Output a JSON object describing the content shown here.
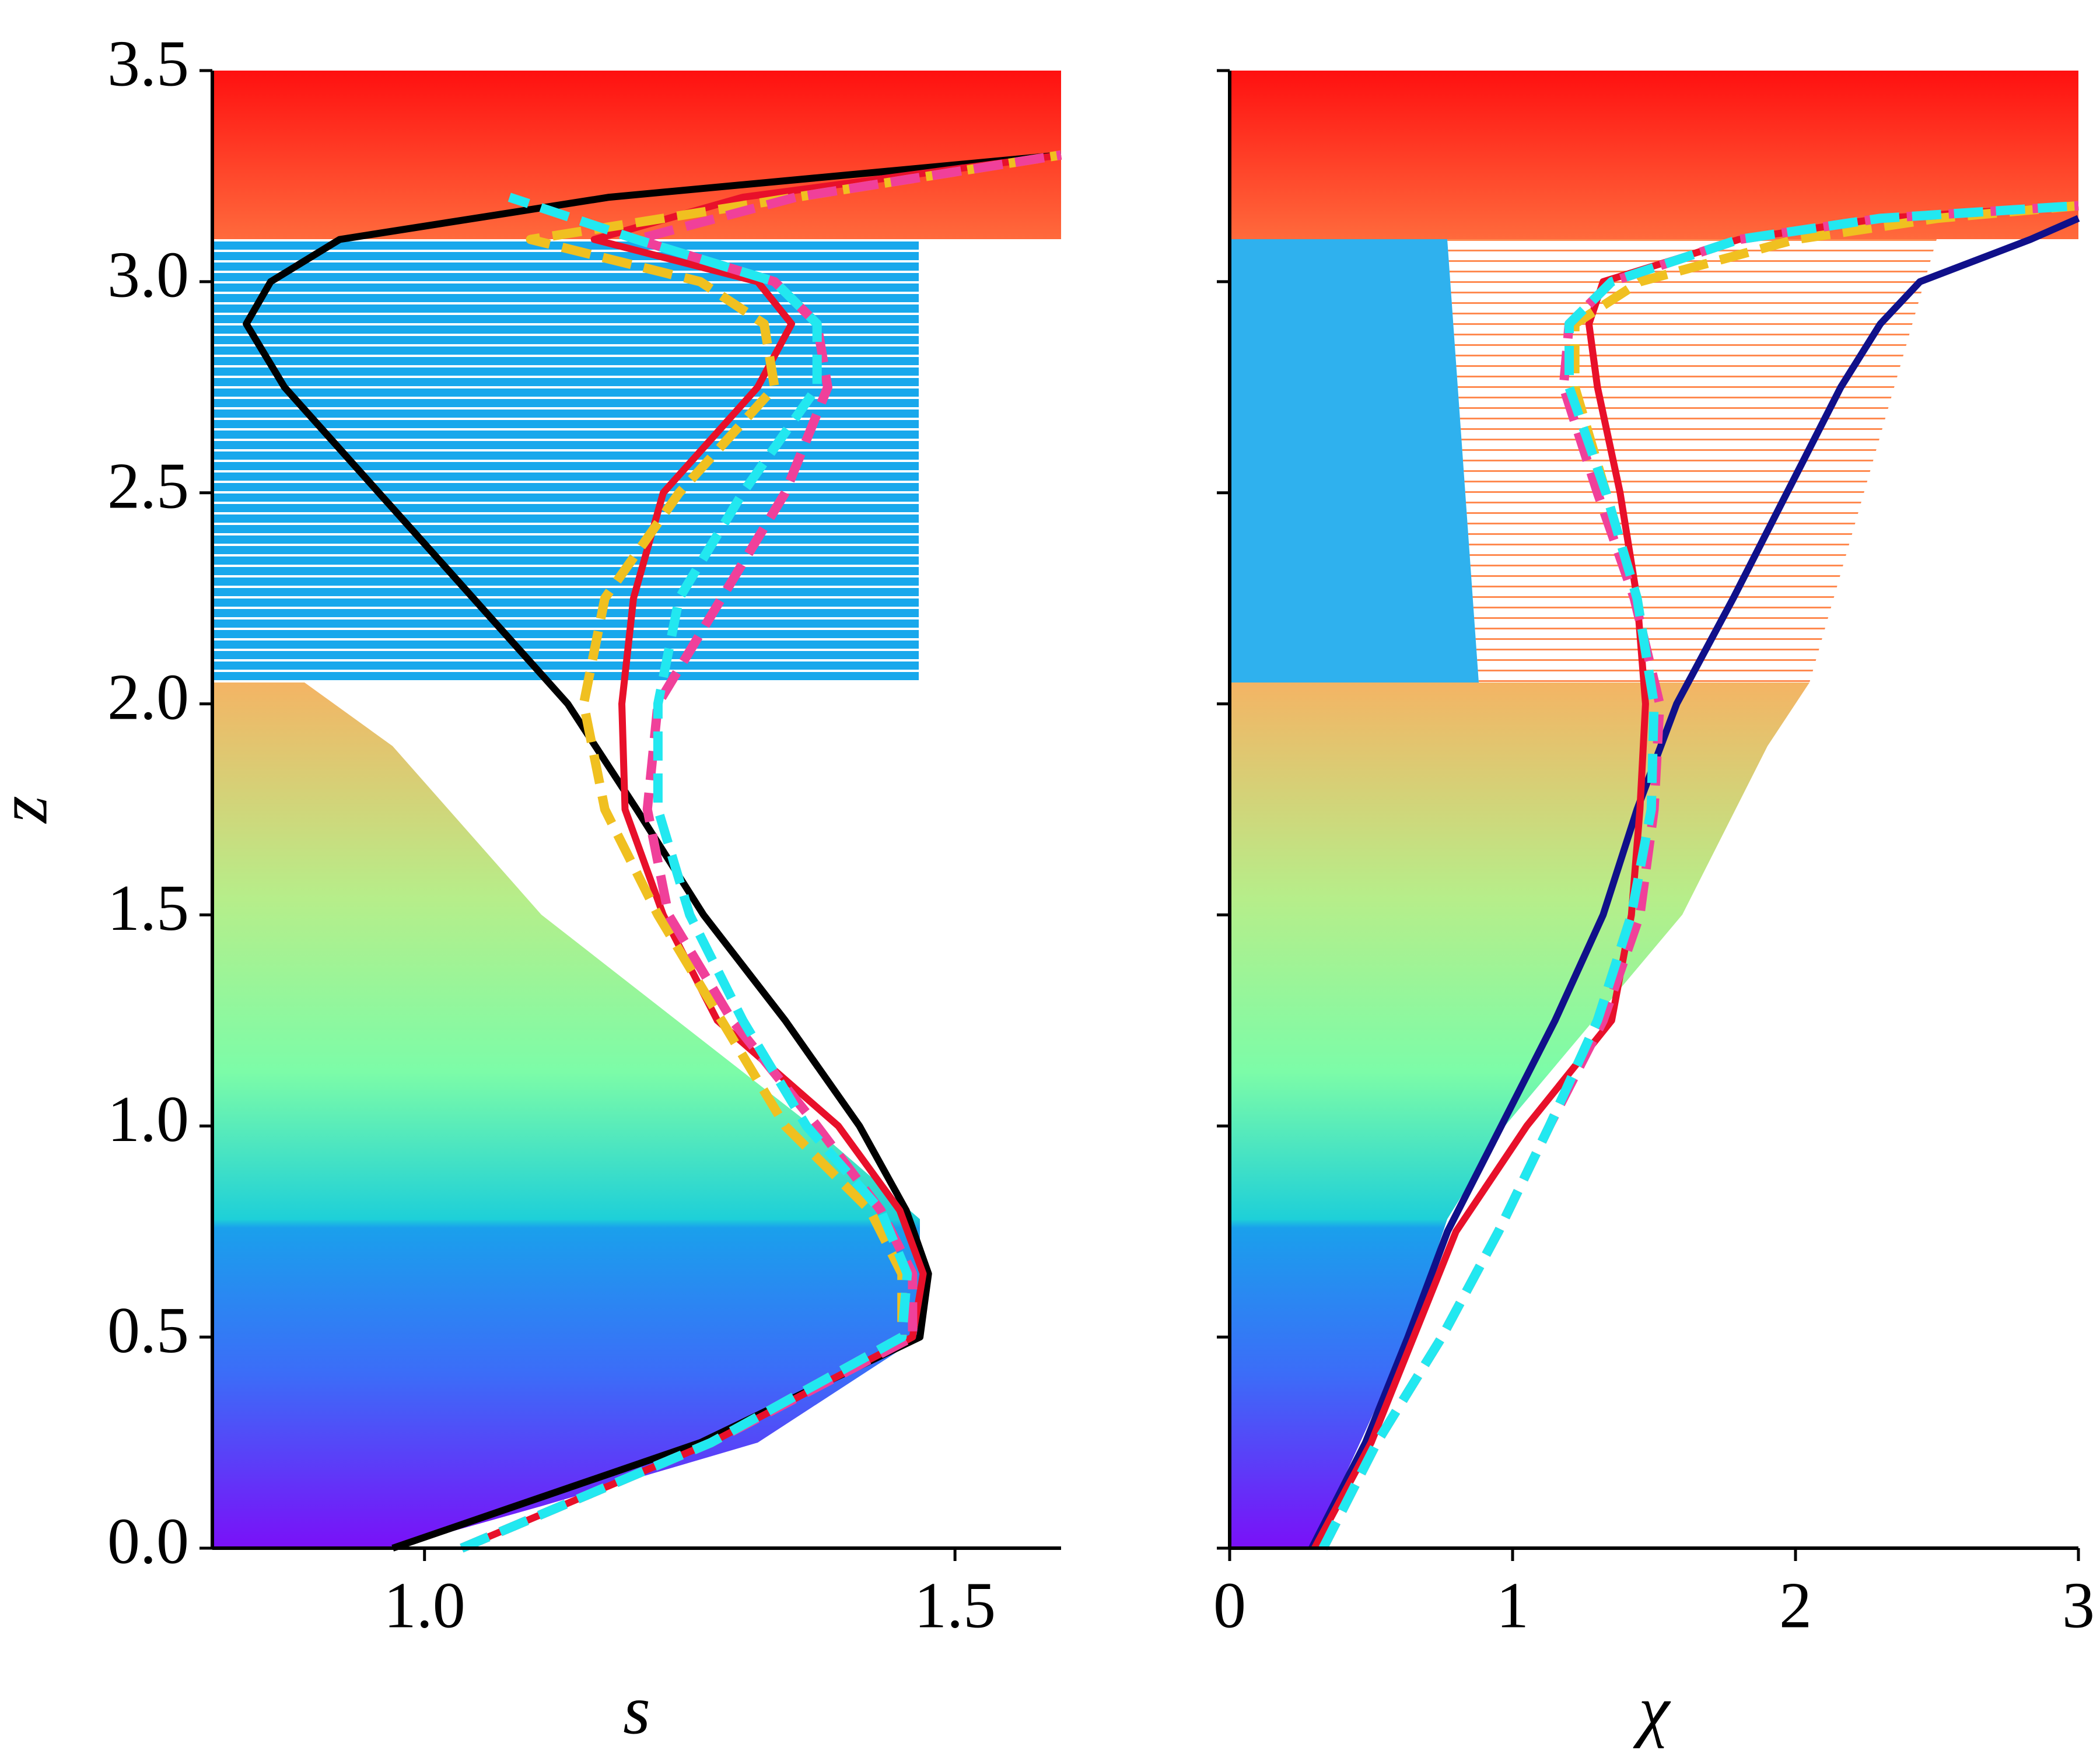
{
  "chart_data": [
    {
      "type": "line",
      "xlabel": "s",
      "ylabel": "z",
      "xlim": [
        0.8,
        1.6
      ],
      "xticks": [
        {
          "value": 1.0,
          "label": "1.0"
        },
        {
          "value": 1.5,
          "label": "1.5"
        }
      ],
      "ylim": [
        0,
        3.5
      ],
      "yticks": [
        {
          "value": 0,
          "label": "0.0"
        },
        {
          "value": 0.5,
          "label": "0.5"
        },
        {
          "value": 1,
          "label": "1.0"
        },
        {
          "value": 1.5,
          "label": "1.5"
        },
        {
          "value": 2,
          "label": "2.0"
        },
        {
          "value": 2.5,
          "label": "2.5"
        },
        {
          "value": 3,
          "label": "3.0"
        },
        {
          "value": 3.5,
          "label": "3.5"
        }
      ],
      "ytick_labels": true,
      "y": [
        0,
        0.25,
        0.5,
        0.65,
        0.8,
        1.0,
        1.25,
        1.5,
        1.75,
        2.0,
        2.25,
        2.5,
        2.75,
        2.9,
        3.0,
        3.1,
        3.2,
        3.3
      ],
      "series": [
        {
          "color": "#000000",
          "dashed": false,
          "values": [
            0.97,
            1.26,
            1.467,
            1.475,
            1.454,
            1.41,
            1.34,
            1.263,
            1.2,
            1.135,
            1.046,
            0.957,
            0.868,
            0.832,
            0.855,
            0.92,
            1.174,
            1.6
          ]
        },
        {
          "color": "#e8102a",
          "dashed": false,
          "values": [
            1.035,
            1.27,
            1.46,
            1.47,
            1.448,
            1.39,
            1.276,
            1.225,
            1.189,
            1.186,
            1.197,
            1.225,
            1.314,
            1.346,
            1.314,
            1.16,
            1.3,
            1.6
          ]
        },
        {
          "color": "#f0c020",
          "dashed": true,
          "values": [
            1.035,
            1.27,
            1.45,
            1.45,
            1.42,
            1.34,
            1.28,
            1.22,
            1.17,
            1.15,
            1.17,
            1.24,
            1.33,
            1.32,
            1.26,
            1.1,
            1.35,
            1.6
          ]
        },
        {
          "color": "#f0409a",
          "dashed": true,
          "values": [
            1.035,
            1.27,
            1.46,
            1.46,
            1.43,
            1.37,
            1.29,
            1.23,
            1.21,
            1.22,
            1.28,
            1.34,
            1.38,
            1.37,
            1.33,
            1.2,
            1.35,
            1.6
          ]
        },
        {
          "color": "#22e8f0",
          "dashed": true,
          "values": [
            1.035,
            1.27,
            1.45,
            1.455,
            1.43,
            1.36,
            1.3,
            1.25,
            1.22,
            1.22,
            1.24,
            1.3,
            1.37,
            1.37,
            1.33,
            1.2,
            1.08,
            null
          ]
        }
      ]
    },
    {
      "type": "line",
      "xlabel": "χ",
      "xlim": [
        0,
        3
      ],
      "xticks": [
        0,
        1,
        2,
        3
      ],
      "ylim": [
        0,
        3.5
      ],
      "yticks": [
        0,
        0.5,
        1,
        1.5,
        2,
        2.5,
        3,
        3.5
      ],
      "ytick_labels": false,
      "y": [
        0,
        0.25,
        0.5,
        0.75,
        1.0,
        1.25,
        1.5,
        1.75,
        2.0,
        2.25,
        2.5,
        2.75,
        2.9,
        3.0,
        3.1,
        3.15,
        3.18
      ],
      "series": [
        {
          "color": "#10108a",
          "dashed": false,
          "values": [
            0.29,
            0.48,
            0.63,
            0.77,
            0.96,
            1.15,
            1.32,
            1.44,
            1.58,
            1.78,
            1.97,
            2.16,
            2.3,
            2.44,
            2.83,
            3.0,
            null
          ]
        },
        {
          "color": "#e8102a",
          "dashed": false,
          "values": [
            0.3,
            0.5,
            0.65,
            0.8,
            1.05,
            1.35,
            1.42,
            1.45,
            1.47,
            1.44,
            1.38,
            1.3,
            1.27,
            1.32,
            1.8,
            2.3,
            3.0
          ]
        },
        {
          "color": "#f0c020",
          "dashed": true,
          "values": [
            0.33,
            0.52,
            0.75,
            0.95,
            1.13,
            1.3,
            1.42,
            1.49,
            1.5,
            1.44,
            1.33,
            1.22,
            1.22,
            1.45,
            2.0,
            2.5,
            3.0
          ]
        },
        {
          "color": "#f0409a",
          "dashed": true,
          "values": [
            0.33,
            0.52,
            0.75,
            0.95,
            1.13,
            1.32,
            1.45,
            1.5,
            1.52,
            1.43,
            1.3,
            1.18,
            1.2,
            1.35,
            1.8,
            2.3,
            3.0
          ]
        },
        {
          "color": "#22e8f0",
          "dashed": true,
          "values": [
            0.33,
            0.52,
            0.75,
            0.95,
            1.13,
            1.3,
            1.42,
            1.49,
            1.5,
            1.44,
            1.33,
            1.2,
            1.2,
            1.35,
            1.8,
            2.3,
            3.0
          ]
        }
      ]
    }
  ]
}
